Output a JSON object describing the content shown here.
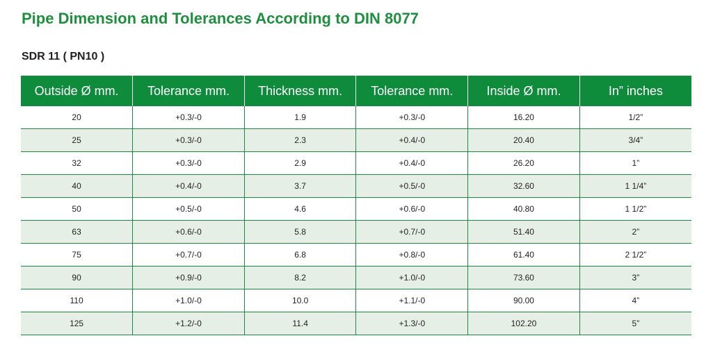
{
  "title": "Pipe Dimension and Tolerances According to DIN 8077",
  "subtitle": "SDR 11 ( PN10 )",
  "colors": {
    "title": "#1f8f3f",
    "header_bg": "#0e8c3c",
    "stripe_bg": "#e5efe6",
    "rule": "#1c8a3f"
  },
  "table": {
    "headers": [
      "Outside Ø mm.",
      "Tolerance mm.",
      "Thickness mm.",
      "Tolerance mm.",
      "Inside Ø mm.",
      "In” inches"
    ],
    "rows": [
      [
        "20",
        "+0.3/-0",
        "1.9",
        "+0.3/-0",
        "16.20",
        "1/2”"
      ],
      [
        "25",
        "+0.3/-0",
        "2.3",
        "+0.4/-0",
        "20.40",
        "3/4”"
      ],
      [
        "32",
        "+0.3/-0",
        "2.9",
        "+0.4/-0",
        "26.20",
        "1”"
      ],
      [
        "40",
        "+0.4/-0",
        "3.7",
        "+0.5/-0",
        "32.60",
        "1 1/4”"
      ],
      [
        "50",
        "+0.5/-0",
        "4.6",
        "+0.6/-0",
        "40.80",
        "1 1/2”"
      ],
      [
        "63",
        "+0.6/-0",
        "5.8",
        "+0.7/-0",
        "51.40",
        "2”"
      ],
      [
        "75",
        "+0.7/-0",
        "6.8",
        "+0.8/-0",
        "61.40",
        "2 1/2”"
      ],
      [
        "90",
        "+0.9/-0",
        "8.2",
        "+1.0/-0",
        "73.60",
        "3”"
      ],
      [
        "110",
        "+1.0/-0",
        "10.0",
        "+1.1/-0",
        "90.00",
        "4”"
      ],
      [
        "125",
        "+1.2/-0",
        "11.4",
        "+1.3/-0",
        "102.20",
        "5”"
      ]
    ]
  }
}
